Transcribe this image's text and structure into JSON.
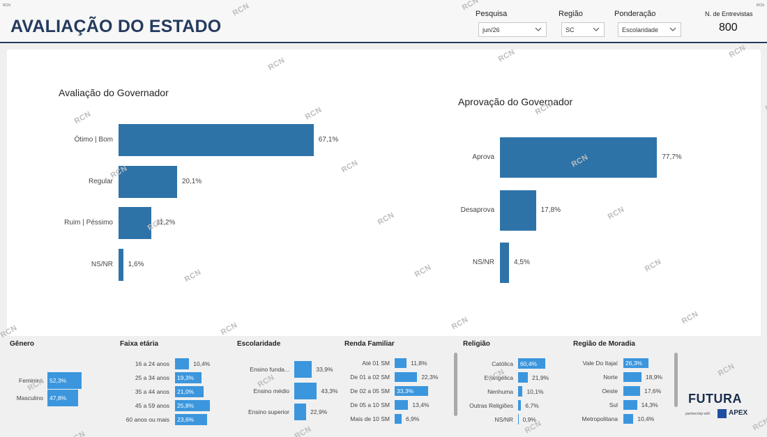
{
  "corner_mark": "RCN",
  "header": {
    "title": "AVALIAÇÃO DO ESTADO",
    "filters": [
      {
        "label": "Pesquisa",
        "value": "jun/26"
      },
      {
        "label": "Região",
        "value": "SC"
      },
      {
        "label": "Ponderação",
        "value": "Escolaridade"
      }
    ],
    "interviews_label": "N. de Entrevistas",
    "interviews_value": "800"
  },
  "watermark": "RCN",
  "governor_evaluation": {
    "title": "Avaliação do Governador",
    "items": [
      {
        "label": "Ótimo | Bom",
        "value": 67.1,
        "display": "67,1%"
      },
      {
        "label": "Regular",
        "value": 20.1,
        "display": "20,1%"
      },
      {
        "label": "Ruim | Péssimo",
        "value": 11.2,
        "display": "11,2%"
      },
      {
        "label": "NS/NR",
        "value": 1.6,
        "display": "1,6%"
      }
    ]
  },
  "governor_approval": {
    "title": "Aprovação do Governador",
    "items": [
      {
        "label": "Aprova",
        "value": 77.7,
        "display": "77,7%"
      },
      {
        "label": "Desaprova",
        "value": 17.8,
        "display": "17,8%"
      },
      {
        "label": "NS/NR",
        "value": 4.5,
        "display": "4,5%"
      }
    ]
  },
  "segments": {
    "genero": {
      "title": "Gênero",
      "items": [
        {
          "label": "Feminino",
          "value": 52.3,
          "display": "52,3%"
        },
        {
          "label": "Masculino",
          "value": 47.8,
          "display": "47,8%"
        }
      ]
    },
    "faixa_etaria": {
      "title": "Faixa etária",
      "items": [
        {
          "label": "16 a 24 anos",
          "value": 10.4,
          "display": "10,4%"
        },
        {
          "label": "25 a 34 anos",
          "value": 19.3,
          "display": "19,3%"
        },
        {
          "label": "35 a 44 anos",
          "value": 21.0,
          "display": "21,0%"
        },
        {
          "label": "45 a 59 anos",
          "value": 25.8,
          "display": "25,8%"
        },
        {
          "label": "60 anos ou mais",
          "value": 23.6,
          "display": "23,6%"
        }
      ]
    },
    "escolaridade": {
      "title": "Escolaridade",
      "items": [
        {
          "label": "Ensino funda...",
          "value": 33.9,
          "display": "33,9%"
        },
        {
          "label": "Ensino médio",
          "value": 43.3,
          "display": "43,3%"
        },
        {
          "label": "Ensino superior",
          "value": 22.9,
          "display": "22,9%"
        }
      ]
    },
    "renda": {
      "title": "Renda Familiar",
      "items": [
        {
          "label": "Até 01 SM",
          "value": 11.8,
          "display": "11,8%"
        },
        {
          "label": "De 01 a 02 SM",
          "value": 22.3,
          "display": "22,3%"
        },
        {
          "label": "De 02 a 05 SM",
          "value": 33.3,
          "display": "33,3%"
        },
        {
          "label": "De 05 a 10 SM",
          "value": 13.4,
          "display": "13,4%"
        },
        {
          "label": "Mais de 10 SM",
          "value": 6.9,
          "display": "6,9%"
        }
      ]
    },
    "religiao": {
      "title": "Religião",
      "items": [
        {
          "label": "Católica",
          "value": 60.4,
          "display": "60,4%"
        },
        {
          "label": "Evangélica",
          "value": 21.9,
          "display": "21,9%"
        },
        {
          "label": "Nenhuma",
          "value": 10.1,
          "display": "10,1%"
        },
        {
          "label": "Outras Religiões",
          "value": 6.7,
          "display": "6,7%"
        },
        {
          "label": "NS/NR",
          "value": 0.9,
          "display": "0,9%"
        }
      ]
    },
    "regiao": {
      "title": "Região de Moradia",
      "items": [
        {
          "label": "Vale Do Itajaí",
          "value": 26.3,
          "display": "26,3%"
        },
        {
          "label": "Norte",
          "value": 18.9,
          "display": "18,9%"
        },
        {
          "label": "Oeste",
          "value": 17.6,
          "display": "17,6%"
        },
        {
          "label": "Sul",
          "value": 14.3,
          "display": "14,3%"
        },
        {
          "label": "Metropolitana",
          "value": 10.4,
          "display": "10,4%"
        }
      ]
    }
  },
  "logo": {
    "brand": "FUTURA",
    "partner_text": "partnership with",
    "partner": "APEX"
  },
  "colors": {
    "primary_bar": "#2e73a8",
    "segment_bar": "#3b96dd",
    "title": "#243a5e"
  }
}
